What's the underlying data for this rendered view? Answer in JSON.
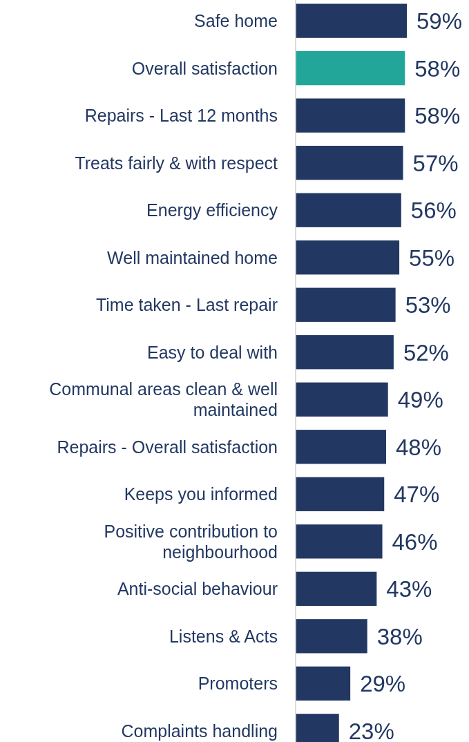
{
  "chart_data": {
    "type": "bar",
    "orientation": "horizontal",
    "categories": [
      "Safe home",
      "Overall satisfaction",
      "Repairs - Last 12 months",
      "Treats fairly & with respect",
      "Energy efficiency",
      "Well maintained home",
      "Time taken - Last repair",
      "Easy to deal with",
      "Communal areas clean & well maintained",
      "Repairs - Overall satisfaction",
      "Keeps you informed",
      "Positive contribution to neighbourhood",
      "Anti-social behaviour",
      "Listens & Acts",
      "Promoters",
      "Complaints handling"
    ],
    "values": [
      59,
      58,
      58,
      57,
      56,
      55,
      53,
      52,
      49,
      48,
      47,
      46,
      43,
      38,
      29,
      23
    ],
    "colors": [
      "#223862",
      "#22a699",
      "#223862",
      "#223862",
      "#223862",
      "#223862",
      "#223862",
      "#223862",
      "#223862",
      "#223862",
      "#223862",
      "#223862",
      "#223862",
      "#223862",
      "#223862",
      "#223862"
    ],
    "value_labels": [
      "59%",
      "58%",
      "58%",
      "57%",
      "56%",
      "55%",
      "53%",
      "52%",
      "49%",
      "48%",
      "47%",
      "46%",
      "43%",
      "38%",
      "29%",
      "23%"
    ],
    "tick_labels": "y"
  }
}
